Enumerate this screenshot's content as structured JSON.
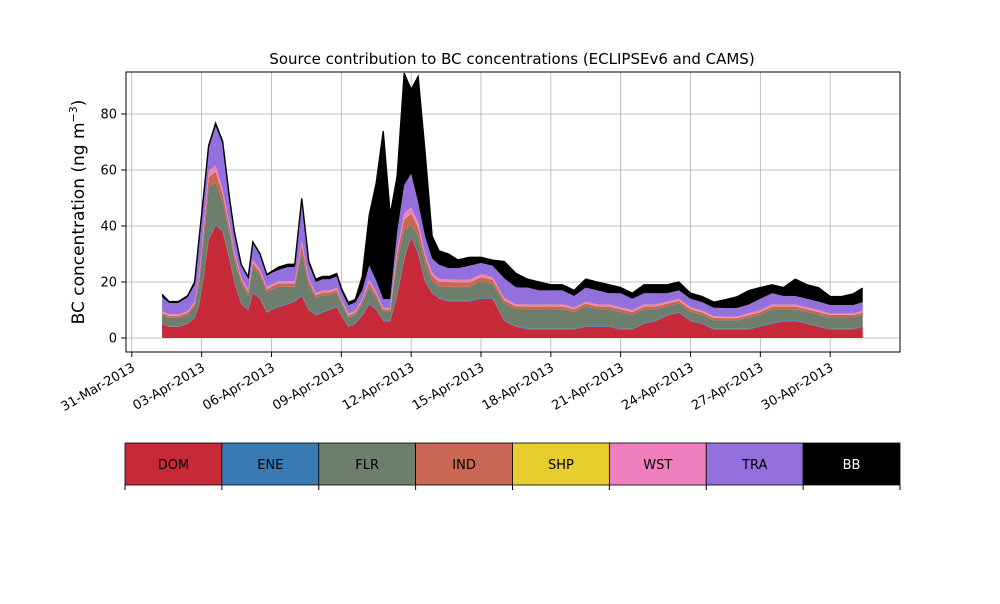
{
  "chart_data": {
    "type": "area",
    "title": "Source contribution to BC concentrations (ECLIPSEv6 and CAMS)",
    "xlabel": "",
    "ylabel_main": "BC concentration (ng m",
    "ylabel_sup": "−3",
    "ylabel_close": ")",
    "ylim": [
      -5,
      95
    ],
    "xlim_days": [
      -0.25,
      33.0
    ],
    "yticks": [
      0,
      20,
      40,
      60,
      80
    ],
    "xticks": [
      {
        "day": 0,
        "label": "31-Mar-2013"
      },
      {
        "day": 3,
        "label": "03-Apr-2013"
      },
      {
        "day": 6,
        "label": "06-Apr-2013"
      },
      {
        "day": 9,
        "label": "09-Apr-2013"
      },
      {
        "day": 12,
        "label": "12-Apr-2013"
      },
      {
        "day": 15,
        "label": "15-Apr-2013"
      },
      {
        "day": 18,
        "label": "18-Apr-2013"
      },
      {
        "day": 21,
        "label": "21-Apr-2013"
      },
      {
        "day": 24,
        "label": "24-Apr-2013"
      },
      {
        "day": 27,
        "label": "27-Apr-2013"
      },
      {
        "day": 30,
        "label": "30-Apr-2013"
      }
    ],
    "grid": true,
    "series_order": [
      "DOM",
      "ENE",
      "FLR",
      "IND",
      "SHP",
      "WST",
      "TRA",
      "BB"
    ],
    "colors": {
      "DOM": "#c62a39",
      "ENE": "#3a7ab3",
      "FLR": "#6e7e6d",
      "IND": "#c96654",
      "SHP": "#e7cd2d",
      "WST": "#f07fbd",
      "TRA": "#9370db",
      "BB": "#000000"
    },
    "legend": [
      {
        "key": "DOM",
        "label": "DOM",
        "text_color": "#000000"
      },
      {
        "key": "ENE",
        "label": "ENE",
        "text_color": "#000000"
      },
      {
        "key": "FLR",
        "label": "FLR",
        "text_color": "#000000"
      },
      {
        "key": "IND",
        "label": "IND",
        "text_color": "#000000"
      },
      {
        "key": "SHP",
        "label": "SHP",
        "text_color": "#000000"
      },
      {
        "key": "WST",
        "label": "WST",
        "text_color": "#000000"
      },
      {
        "key": "TRA",
        "label": "TRA",
        "text_color": "#000000"
      },
      {
        "key": "BB",
        "label": "BB",
        "text_color": "#ffffff"
      }
    ],
    "x": [
      1.3,
      1.6,
      2.0,
      2.4,
      2.7,
      2.9,
      3.1,
      3.3,
      3.6,
      3.9,
      4.2,
      4.4,
      4.7,
      5.0,
      5.2,
      5.5,
      5.8,
      6.0,
      6.3,
      6.7,
      7.0,
      7.3,
      7.6,
      7.9,
      8.2,
      8.5,
      8.8,
      9.0,
      9.3,
      9.6,
      9.9,
      10.2,
      10.5,
      10.8,
      11.1,
      11.4,
      11.7,
      12.0,
      12.3,
      12.6,
      12.9,
      13.2,
      13.6,
      14.0,
      14.5,
      15.0,
      15.5,
      16.0,
      16.5,
      17.0,
      17.5,
      18.0,
      18.5,
      19.0,
      19.5,
      20.0,
      20.5,
      21.0,
      21.5,
      22.0,
      22.5,
      23.0,
      23.5,
      24.0,
      24.5,
      25.0,
      25.5,
      26.0,
      26.5,
      27.0,
      27.5,
      28.0,
      28.5,
      29.0,
      29.5,
      30.0,
      30.5,
      31.0,
      31.4
    ],
    "series": [
      {
        "name": "DOM",
        "values": [
          5,
          4,
          4,
          5,
          7,
          12,
          22,
          35,
          40,
          38,
          28,
          20,
          12,
          10,
          16,
          14,
          9,
          10,
          11,
          12,
          13,
          15,
          10,
          8,
          9,
          10,
          11,
          8,
          4,
          5,
          8,
          12,
          10,
          6,
          6,
          15,
          28,
          36,
          30,
          20,
          16,
          14,
          13,
          13,
          13,
          14,
          14,
          6,
          4,
          3,
          3,
          3,
          3,
          3,
          4,
          4,
          4,
          3,
          3,
          5,
          6,
          8,
          9,
          6,
          5,
          3,
          3,
          3,
          3,
          4,
          5,
          6,
          6,
          5,
          4,
          3,
          3,
          3,
          4
        ]
      },
      {
        "name": "ENE",
        "values": [
          0.2,
          0.2,
          0.2,
          0.2,
          0.3,
          0.3,
          0.4,
          0.5,
          0.5,
          0.5,
          0.4,
          0.3,
          0.3,
          0.3,
          0.3,
          0.3,
          0.3,
          0.3,
          0.3,
          0.3,
          0.3,
          0.3,
          0.3,
          0.3,
          0.3,
          0.3,
          0.3,
          0.3,
          0.3,
          0.3,
          0.3,
          0.3,
          0.3,
          0.3,
          0.3,
          0.3,
          0.4,
          0.5,
          0.4,
          0.4,
          0.3,
          0.3,
          0.3,
          0.3,
          0.3,
          0.3,
          0.3,
          0.3,
          0.3,
          0.3,
          0.3,
          0.3,
          0.3,
          0.3,
          0.3,
          0.3,
          0.3,
          0.3,
          0.3,
          0.3,
          0.3,
          0.3,
          0.3,
          0.3,
          0.3,
          0.3,
          0.3,
          0.3,
          0.3,
          0.3,
          0.3,
          0.3,
          0.3,
          0.3,
          0.3,
          0.3,
          0.3,
          0.3,
          0.3
        ]
      },
      {
        "name": "FLR",
        "values": [
          3,
          3,
          3,
          3,
          4,
          8,
          14,
          18,
          15,
          10,
          9,
          8,
          7,
          5,
          9,
          8,
          7,
          7,
          7,
          6,
          5,
          15,
          9,
          6,
          6,
          5,
          5,
          4,
          3,
          3,
          4,
          6,
          4,
          3,
          3,
          12,
          10,
          4,
          6,
          6,
          4,
          4,
          5,
          5,
          5,
          6,
          5,
          6,
          6,
          7,
          7,
          7,
          7,
          6,
          7,
          6,
          6,
          6,
          5,
          5,
          4,
          3,
          3,
          3,
          3,
          3,
          3,
          3,
          4,
          4,
          5,
          4,
          4,
          4,
          4,
          4,
          4,
          4,
          4
        ]
      },
      {
        "name": "IND",
        "values": [
          0.8,
          0.7,
          0.7,
          0.8,
          1,
          2,
          3,
          4,
          4,
          3,
          2,
          1.8,
          1.5,
          1.2,
          1.5,
          1.4,
          1.1,
          1.1,
          1.2,
          1.2,
          1.2,
          3,
          1.2,
          1,
          1,
          1,
          1,
          0.9,
          0.8,
          0.8,
          1,
          1.5,
          1.2,
          0.9,
          0.9,
          3,
          4,
          4,
          3,
          2.5,
          2,
          1.8,
          1.7,
          1.6,
          1.5,
          1.5,
          1.5,
          1.2,
          1.1,
          1,
          1,
          1,
          1,
          1,
          1,
          1,
          1,
          1,
          1,
          1,
          1,
          1,
          1,
          1,
          0.9,
          0.9,
          0.8,
          0.8,
          0.9,
          1,
          1,
          1,
          1,
          1,
          1,
          0.9,
          0.9,
          0.9,
          0.9
        ]
      },
      {
        "name": "SHP",
        "values": [
          0.1,
          0.1,
          0.1,
          0.1,
          0.1,
          0.1,
          0.2,
          0.2,
          0.2,
          0.2,
          0.1,
          0.1,
          0.1,
          0.1,
          0.1,
          0.1,
          0.1,
          0.1,
          0.1,
          0.1,
          0.1,
          0.1,
          0.1,
          0.1,
          0.1,
          0.1,
          0.1,
          0.1,
          0.1,
          0.1,
          0.1,
          0.1,
          0.1,
          0.1,
          0.1,
          0.1,
          0.2,
          0.2,
          0.2,
          0.1,
          0.1,
          0.1,
          0.1,
          0.1,
          0.1,
          0.1,
          0.1,
          0.1,
          0.1,
          0.1,
          0.1,
          0.1,
          0.1,
          0.1,
          0.1,
          0.1,
          0.1,
          0.1,
          0.1,
          0.1,
          0.1,
          0.1,
          0.1,
          0.1,
          0.1,
          0.1,
          0.1,
          0.1,
          0.1,
          0.1,
          0.1,
          0.1,
          0.1,
          0.1,
          0.1,
          0.1,
          0.1,
          0.1,
          0.1
        ]
      },
      {
        "name": "WST",
        "values": [
          0.5,
          0.5,
          0.5,
          0.5,
          0.6,
          1,
          1.5,
          2,
          2,
          1.6,
          1.3,
          1,
          0.8,
          0.7,
          0.9,
          0.9,
          0.7,
          0.7,
          0.7,
          0.7,
          0.7,
          1.5,
          0.8,
          0.6,
          0.6,
          0.6,
          0.6,
          0.5,
          0.5,
          0.5,
          0.6,
          1,
          0.8,
          0.6,
          0.6,
          1.5,
          2,
          2,
          1.8,
          1.2,
          1,
          0.9,
          0.9,
          0.9,
          0.9,
          0.9,
          0.9,
          0.7,
          0.6,
          0.6,
          0.6,
          0.6,
          0.6,
          0.6,
          0.6,
          0.6,
          0.6,
          0.6,
          0.6,
          0.6,
          0.6,
          0.6,
          0.6,
          0.6,
          0.5,
          0.5,
          0.5,
          0.5,
          0.6,
          0.6,
          0.6,
          0.6,
          0.6,
          0.6,
          0.6,
          0.5,
          0.5,
          0.5,
          0.5
        ]
      },
      {
        "name": "TRA",
        "values": [
          5,
          4,
          4,
          5,
          6,
          12,
          10,
          8,
          14,
          16,
          8,
          6,
          4,
          4,
          6,
          5,
          4,
          4,
          4,
          5,
          5,
          14,
          5,
          4,
          4,
          4,
          4,
          3,
          3,
          3,
          3,
          5,
          4,
          3,
          3,
          6,
          10,
          12,
          7,
          6,
          5,
          5,
          4,
          4,
          5,
          4,
          4,
          7,
          6,
          6,
          5,
          5,
          5,
          4,
          5,
          5,
          4,
          5,
          4,
          4,
          4,
          3,
          3,
          3,
          3,
          3,
          3,
          3,
          3,
          4,
          4,
          3,
          3,
          3,
          3,
          3,
          3,
          3,
          3
        ]
      },
      {
        "name": "BB",
        "values": [
          1,
          0.5,
          0.5,
          0.5,
          1,
          1,
          1,
          1,
          1,
          1,
          1,
          1,
          0.5,
          0.5,
          0.5,
          0.5,
          0.5,
          0.5,
          1,
          1,
          1,
          1,
          1,
          1,
          1,
          1,
          1,
          1,
          1,
          1,
          5,
          18,
          35,
          60,
          30,
          20,
          40,
          30,
          45,
          30,
          8,
          5,
          5,
          3,
          3,
          2,
          2,
          6,
          5,
          3,
          3,
          2,
          2,
          2,
          3,
          3,
          3,
          2,
          2,
          3,
          3,
          3,
          3,
          2,
          2,
          2,
          3,
          4,
          5,
          4,
          3,
          3,
          6,
          5,
          5,
          3,
          3,
          4,
          5
        ]
      }
    ]
  }
}
